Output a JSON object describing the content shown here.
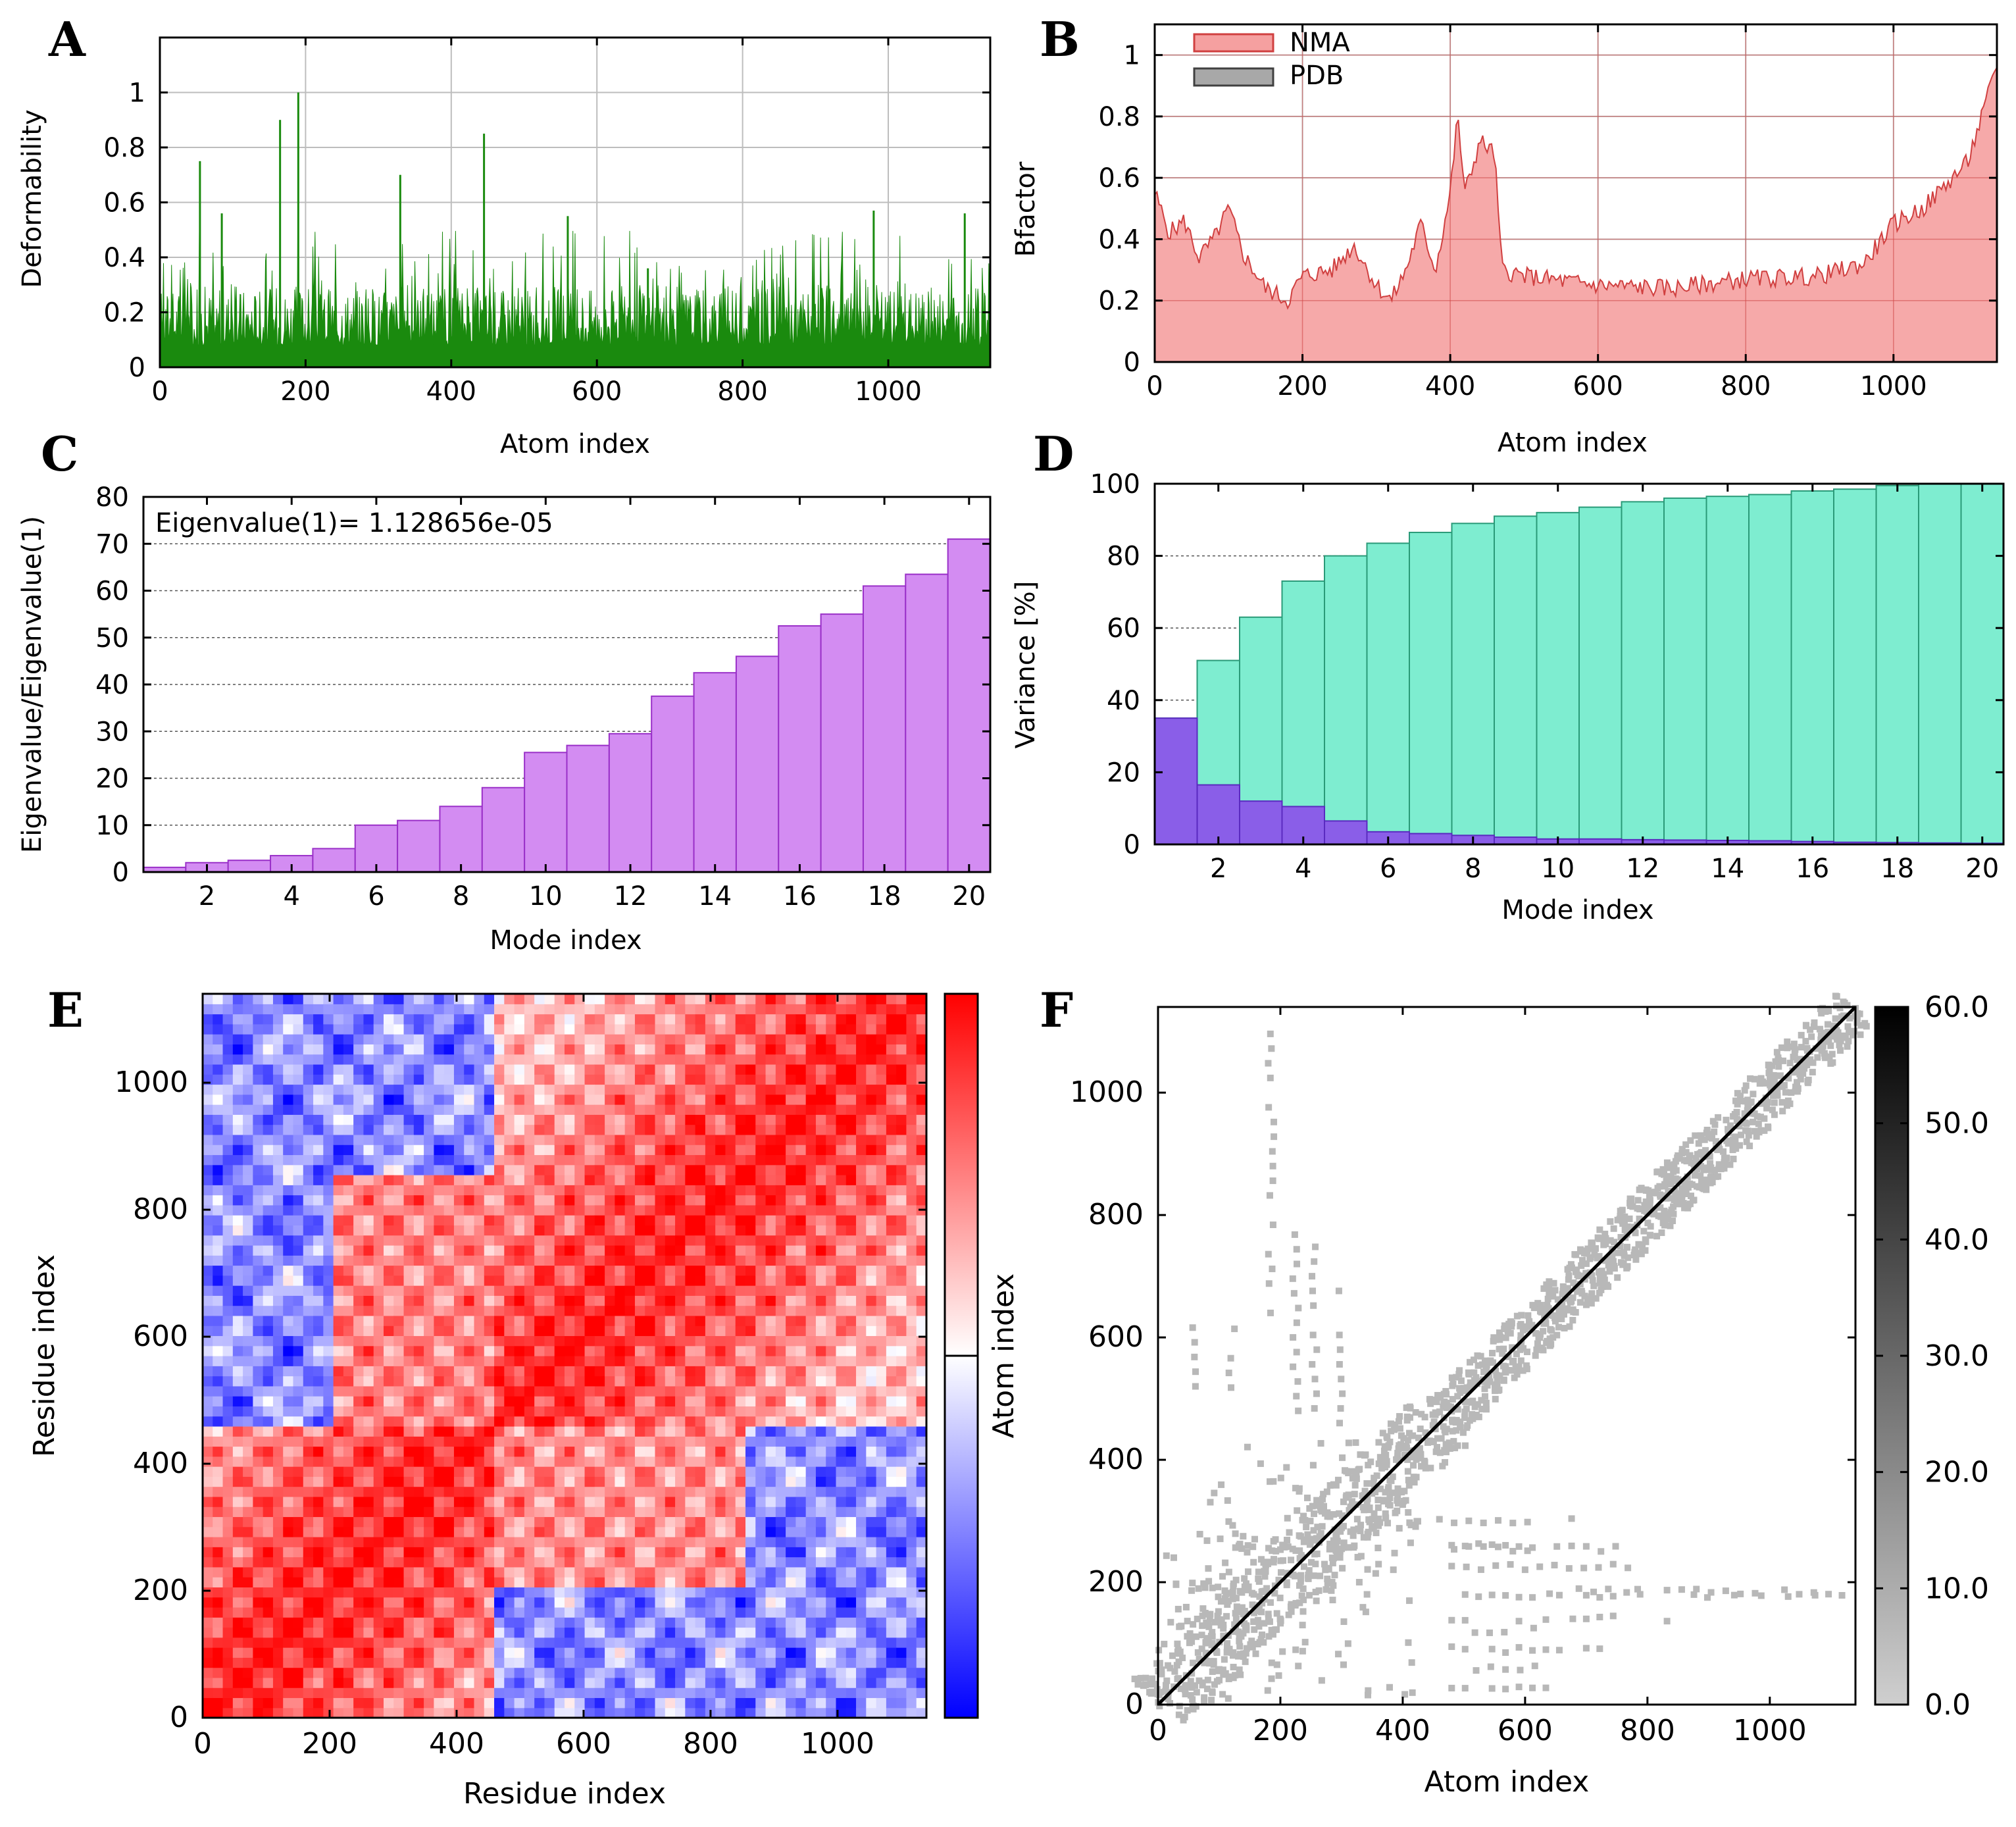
{
  "figure": {
    "panels": [
      {
        "id": "A",
        "letter": "A",
        "chart_data": {
          "type": "area",
          "title": "",
          "xlabel": "Atom index",
          "ylabel": "Deformability",
          "xlim": [
            0,
            1140
          ],
          "ylim": [
            0,
            1.2
          ],
          "xticks": [
            "0",
            "200",
            "400",
            "600",
            "800",
            "1000"
          ],
          "xtick_values": [
            0,
            200,
            400,
            600,
            800,
            1000
          ],
          "yticks": [
            "0",
            "0.2",
            "0.4",
            "0.6",
            "0.8",
            "1"
          ],
          "ytick_values": [
            0,
            0.2,
            0.4,
            0.6,
            0.8,
            1.0
          ],
          "grid": true,
          "color": "#1a8a0e",
          "series": [
            {
              "name": "Deformability",
              "baseline_range": [
                0.08,
                0.3
              ],
              "peaks": [
                [
                  55,
                  0.75
                ],
                [
                  85,
                  0.56
                ],
                [
                  165,
                  0.9
                ],
                [
                  190,
                  1.0
                ],
                [
                  330,
                  0.7
                ],
                [
                  445,
                  0.85
                ],
                [
                  560,
                  0.55
                ],
                [
                  670,
                  0.36
                ],
                [
                  980,
                  0.57
                ],
                [
                  1105,
                  0.56
                ]
              ]
            }
          ]
        }
      },
      {
        "id": "B",
        "letter": "B",
        "chart_data": {
          "type": "area",
          "title": "",
          "xlabel": "Atom index",
          "ylabel": "Bfactor",
          "xlim": [
            0,
            1140
          ],
          "ylim": [
            0,
            1.1
          ],
          "xticks": [
            "0",
            "200",
            "400",
            "600",
            "800",
            "1000"
          ],
          "xtick_values": [
            0,
            200,
            400,
            600,
            800,
            1000
          ],
          "yticks": [
            "0",
            "0.2",
            "0.4",
            "0.6",
            "0.8",
            "1"
          ],
          "ytick_values": [
            0,
            0.2,
            0.4,
            0.6,
            0.8,
            1.0
          ],
          "grid": true,
          "legend": [
            {
              "name": "NMA",
              "fill": "#f5a0a0",
              "stroke": "#d04040"
            },
            {
              "name": "PDB",
              "fill": "#a8a8a8",
              "stroke": "#404040"
            }
          ],
          "legend_position": "top-left",
          "series": [
            {
              "name": "NMA",
              "x": [
                0,
                20,
                40,
                60,
                80,
                100,
                120,
                150,
                180,
                200,
                240,
                270,
                300,
                320,
                340,
                360,
                380,
                400,
                410,
                420,
                440,
                460,
                470,
                500,
                600,
                700,
                800,
                900,
                960,
                1000,
                1040,
                1080,
                1100,
                1120,
                1140
              ],
              "values": [
                0.55,
                0.42,
                0.46,
                0.34,
                0.4,
                0.5,
                0.35,
                0.24,
                0.2,
                0.28,
                0.3,
                0.38,
                0.25,
                0.2,
                0.3,
                0.45,
                0.3,
                0.55,
                0.8,
                0.55,
                0.72,
                0.68,
                0.3,
                0.28,
                0.25,
                0.24,
                0.27,
                0.28,
                0.32,
                0.45,
                0.5,
                0.6,
                0.65,
                0.8,
                0.97
              ]
            },
            {
              "name": "PDB",
              "x": [],
              "values": []
            }
          ]
        }
      },
      {
        "id": "C",
        "letter": "C",
        "chart_data": {
          "type": "bar",
          "title": "",
          "annotation": "Eigenvalue(1)= 1.128656e-05",
          "xlabel": "Mode index",
          "ylabel": "Eigenvalue/Eigenvalue(1)",
          "xlim": [
            0.5,
            20.5
          ],
          "ylim": [
            0,
            80
          ],
          "xticks": [
            "2",
            "4",
            "6",
            "8",
            "10",
            "12",
            "14",
            "16",
            "18",
            "20"
          ],
          "xtick_values": [
            2,
            4,
            6,
            8,
            10,
            12,
            14,
            16,
            18,
            20
          ],
          "yticks": [
            "0",
            "10",
            "20",
            "30",
            "40",
            "50",
            "60",
            "70",
            "80"
          ],
          "ytick_values": [
            0,
            10,
            20,
            30,
            40,
            50,
            60,
            70,
            80
          ],
          "grid": "dotted-horizontal",
          "color": "#d38cf2",
          "stroke": "#9a30c8",
          "categories": [
            1,
            2,
            3,
            4,
            5,
            6,
            7,
            8,
            9,
            10,
            11,
            12,
            13,
            14,
            15,
            16,
            17,
            18,
            19,
            20
          ],
          "values": [
            1,
            2,
            2.5,
            3.5,
            5,
            10,
            11,
            14,
            18,
            25.5,
            27,
            29.5,
            37.5,
            42.5,
            46,
            52.5,
            55,
            61,
            63.5,
            71
          ]
        }
      },
      {
        "id": "D",
        "letter": "D",
        "chart_data": {
          "type": "bar",
          "title": "",
          "xlabel": "Mode index",
          "ylabel": "Variance [%]",
          "xlim": [
            0.5,
            20.5
          ],
          "ylim": [
            0,
            100
          ],
          "xticks": [
            "2",
            "4",
            "6",
            "8",
            "10",
            "12",
            "14",
            "16",
            "18",
            "20"
          ],
          "xtick_values": [
            2,
            4,
            6,
            8,
            10,
            12,
            14,
            16,
            18,
            20
          ],
          "yticks": [
            "0",
            "20",
            "40",
            "60",
            "80",
            "100"
          ],
          "ytick_values": [
            0,
            20,
            40,
            60,
            80,
            100
          ],
          "grid": "dotted-horizontal",
          "categories": [
            1,
            2,
            3,
            4,
            5,
            6,
            7,
            8,
            9,
            10,
            11,
            12,
            13,
            14,
            15,
            16,
            17,
            18,
            19,
            20
          ],
          "series": [
            {
              "name": "cumulative",
              "color": "#7eedd0",
              "stroke": "#2a9a78",
              "values": [
                35,
                51,
                63,
                73,
                80,
                83.5,
                86.5,
                89,
                91,
                92,
                93.5,
                95,
                96,
                96.5,
                97,
                98,
                98.5,
                99.5,
                100,
                100
              ]
            },
            {
              "name": "individual",
              "color": "#8a5ee8",
              "stroke": "#5a2ac0",
              "values": [
                35,
                16.5,
                12,
                10.5,
                6.5,
                3.5,
                3,
                2.5,
                2,
                1.5,
                1.5,
                1.3,
                1.2,
                1.1,
                1,
                0.8,
                0.6,
                0.5,
                0.4,
                0.3
              ]
            }
          ]
        }
      },
      {
        "id": "E",
        "letter": "E",
        "chart_data": {
          "type": "heatmap",
          "title": "",
          "xlabel": "Residue index",
          "ylabel": "Residue index",
          "colorbar_label": "Atom index",
          "xlim": [
            0,
            1140
          ],
          "ylim": [
            0,
            1140
          ],
          "xticks": [
            "0",
            "200",
            "400",
            "600",
            "800",
            "1000"
          ],
          "xtick_values": [
            0,
            200,
            400,
            600,
            800,
            1000
          ],
          "yticks": [
            "0",
            "200",
            "400",
            "600",
            "800",
            "1000"
          ],
          "ytick_values": [
            0,
            200,
            400,
            600,
            800,
            1000
          ],
          "colormap": [
            "#0000ff",
            "#ffffff",
            "#ff0000"
          ],
          "blocks": [
            {
              "x": [
                0,
                465
              ],
              "y": [
                0,
                465
              ],
              "sign": "positive"
            },
            {
              "x": [
                465,
                1140
              ],
              "y": [
                465,
                1140
              ],
              "sign": "positive"
            },
            {
              "x": [
                0,
                465
              ],
              "y": [
                465,
                1140
              ],
              "sign": "mixed"
            },
            {
              "x": [
                465,
                1140
              ],
              "y": [
                0,
                465
              ],
              "sign": "mixed"
            }
          ]
        }
      },
      {
        "id": "F",
        "letter": "F",
        "chart_data": {
          "type": "scatter",
          "title": "",
          "xlabel": "Atom index",
          "ylabel": "",
          "xlim": [
            0,
            1140
          ],
          "ylim": [
            0,
            1140
          ],
          "xticks": [
            "0",
            "200",
            "400",
            "600",
            "800",
            "1000"
          ],
          "xtick_values": [
            0,
            200,
            400,
            600,
            800,
            1000
          ],
          "yticks": [
            "0",
            "200",
            "400",
            "600",
            "800",
            "1000"
          ],
          "ytick_values": [
            0,
            200,
            400,
            600,
            800,
            1000
          ],
          "colorbar_ticks": [
            "0.0",
            "10.0",
            "20.0",
            "30.0",
            "40.0",
            "50.0",
            "60.0"
          ],
          "colorbar_values": [
            0,
            10,
            20,
            30,
            40,
            50,
            60
          ],
          "point_color": "#b8b8b8",
          "diagonal_color": "#000000",
          "description": "elastic network contact map"
        }
      }
    ]
  }
}
